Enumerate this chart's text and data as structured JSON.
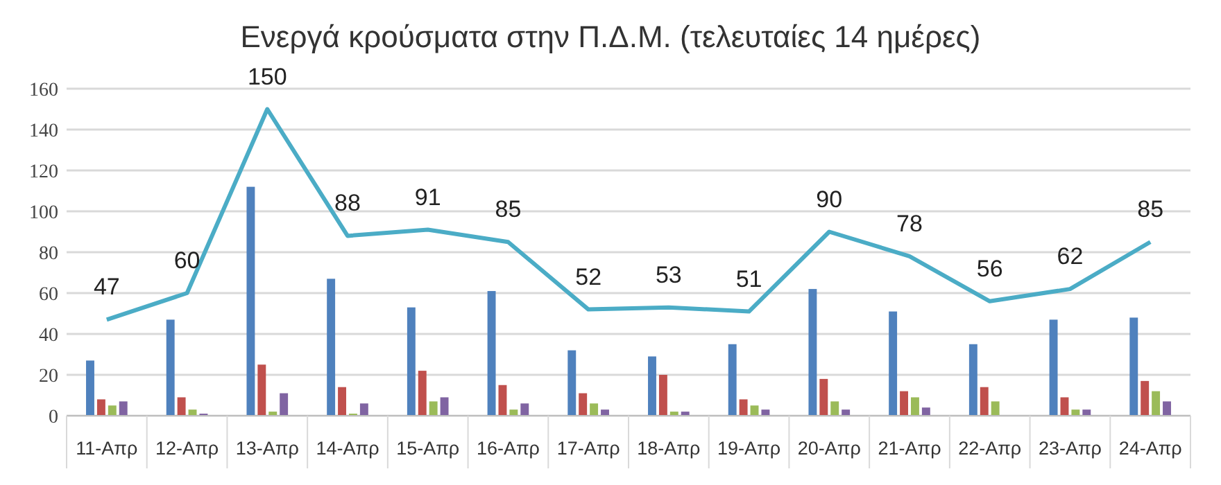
{
  "chart_data": {
    "type": "bar",
    "title": "Ενεργά κρούσματα στην Π.Δ.Μ. (τελευταίες 14 ημέρες)",
    "categories": [
      "11-Απρ",
      "12-Απρ",
      "13-Απρ",
      "14-Απρ",
      "15-Απρ",
      "16-Απρ",
      "17-Απρ",
      "18-Απρ",
      "19-Απρ",
      "20-Απρ",
      "21-Απρ",
      "22-Απρ",
      "23-Απρ",
      "24-Απρ"
    ],
    "series": [
      {
        "color": "#4f81bd",
        "values": [
          27,
          47,
          112,
          67,
          53,
          61,
          32,
          29,
          35,
          62,
          51,
          35,
          47,
          48
        ]
      },
      {
        "color": "#c0504d",
        "values": [
          8,
          9,
          25,
          14,
          22,
          15,
          11,
          20,
          8,
          18,
          12,
          14,
          9,
          17
        ]
      },
      {
        "color": "#9bbb59",
        "values": [
          5,
          3,
          2,
          1,
          7,
          3,
          6,
          2,
          5,
          7,
          9,
          7,
          3,
          12
        ]
      },
      {
        "color": "#8064a2",
        "values": [
          7,
          1,
          11,
          6,
          9,
          6,
          3,
          2,
          3,
          3,
          4,
          0,
          3,
          7
        ]
      },
      {
        "type": "line",
        "color": "#4bacc6",
        "values": [
          47,
          60,
          150,
          88,
          91,
          85,
          52,
          53,
          51,
          90,
          78,
          56,
          62,
          85
        ],
        "value_labels": [
          "47",
          "60",
          "150",
          "88",
          "91",
          "85",
          "52",
          "53",
          "51",
          "90",
          "78",
          "56",
          "62",
          "85"
        ]
      }
    ],
    "ylim": [
      0,
      160
    ],
    "yticks": [
      0,
      20,
      40,
      60,
      80,
      100,
      120,
      140,
      160
    ],
    "grid": "y"
  }
}
